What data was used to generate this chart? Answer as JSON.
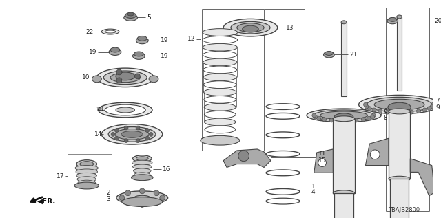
{
  "part_number": "TBAJB2800",
  "bg_color": "#ffffff",
  "lc": "#444444",
  "fs": 6.5,
  "gray1": "#cccccc",
  "gray2": "#aaaaaa",
  "gray3": "#888888",
  "gray4": "#666666",
  "gray5": "#e8e8e8"
}
